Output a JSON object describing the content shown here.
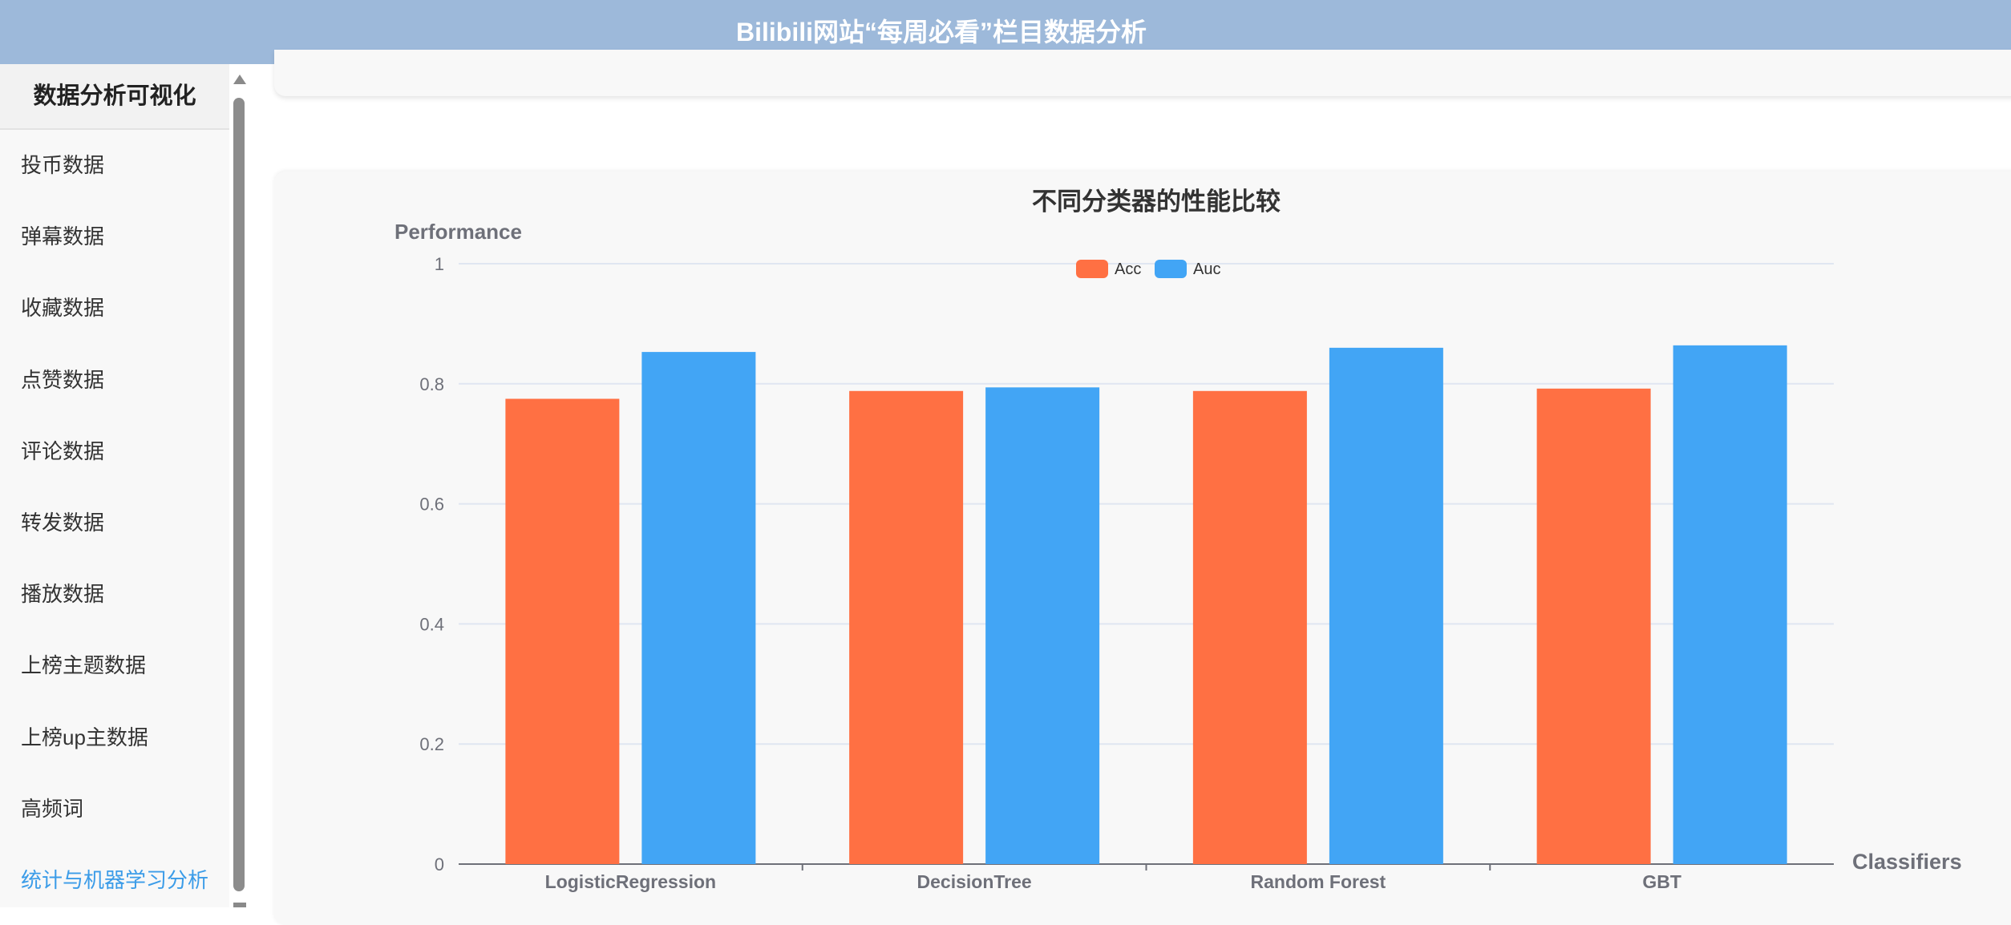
{
  "header": {
    "title": "Bilibili网站“每周必看”栏目数据分析"
  },
  "sidebar": {
    "title": "数据分析可视化",
    "items": [
      {
        "label": "投币数据",
        "active": false
      },
      {
        "label": "弹幕数据",
        "active": false
      },
      {
        "label": "收藏数据",
        "active": false
      },
      {
        "label": "点赞数据",
        "active": false
      },
      {
        "label": "评论数据",
        "active": false
      },
      {
        "label": "转发数据",
        "active": false
      },
      {
        "label": "播放数据",
        "active": false
      },
      {
        "label": "上榜主题数据",
        "active": false
      },
      {
        "label": "上榜up主数据",
        "active": false
      },
      {
        "label": "高频词",
        "active": false
      },
      {
        "label": "统计与机器学习分析",
        "active": true
      }
    ]
  },
  "colors": {
    "header_bg": "#9db9da",
    "active_menu": "#3b9ce8",
    "acc": "#ff7043",
    "auc": "#42a5f5"
  },
  "chart_data": {
    "type": "bar",
    "title": "不同分类器的性能比较",
    "xlabel": "Classifiers",
    "ylabel": "Performance",
    "categories": [
      "LogisticRegression",
      "DecisionTree",
      "Random Forest",
      "GBT"
    ],
    "series": [
      {
        "name": "Acc",
        "color": "#ff7043",
        "values": [
          0.775,
          0.788,
          0.788,
          0.792
        ]
      },
      {
        "name": "Auc",
        "color": "#42a5f5",
        "values": [
          0.853,
          0.794,
          0.86,
          0.864
        ]
      }
    ],
    "ylim": [
      0,
      1
    ],
    "yticks": [
      "0",
      "0.2",
      "0.4",
      "0.6",
      "0.8",
      "1"
    ],
    "grid": true,
    "legend": "top-center"
  }
}
